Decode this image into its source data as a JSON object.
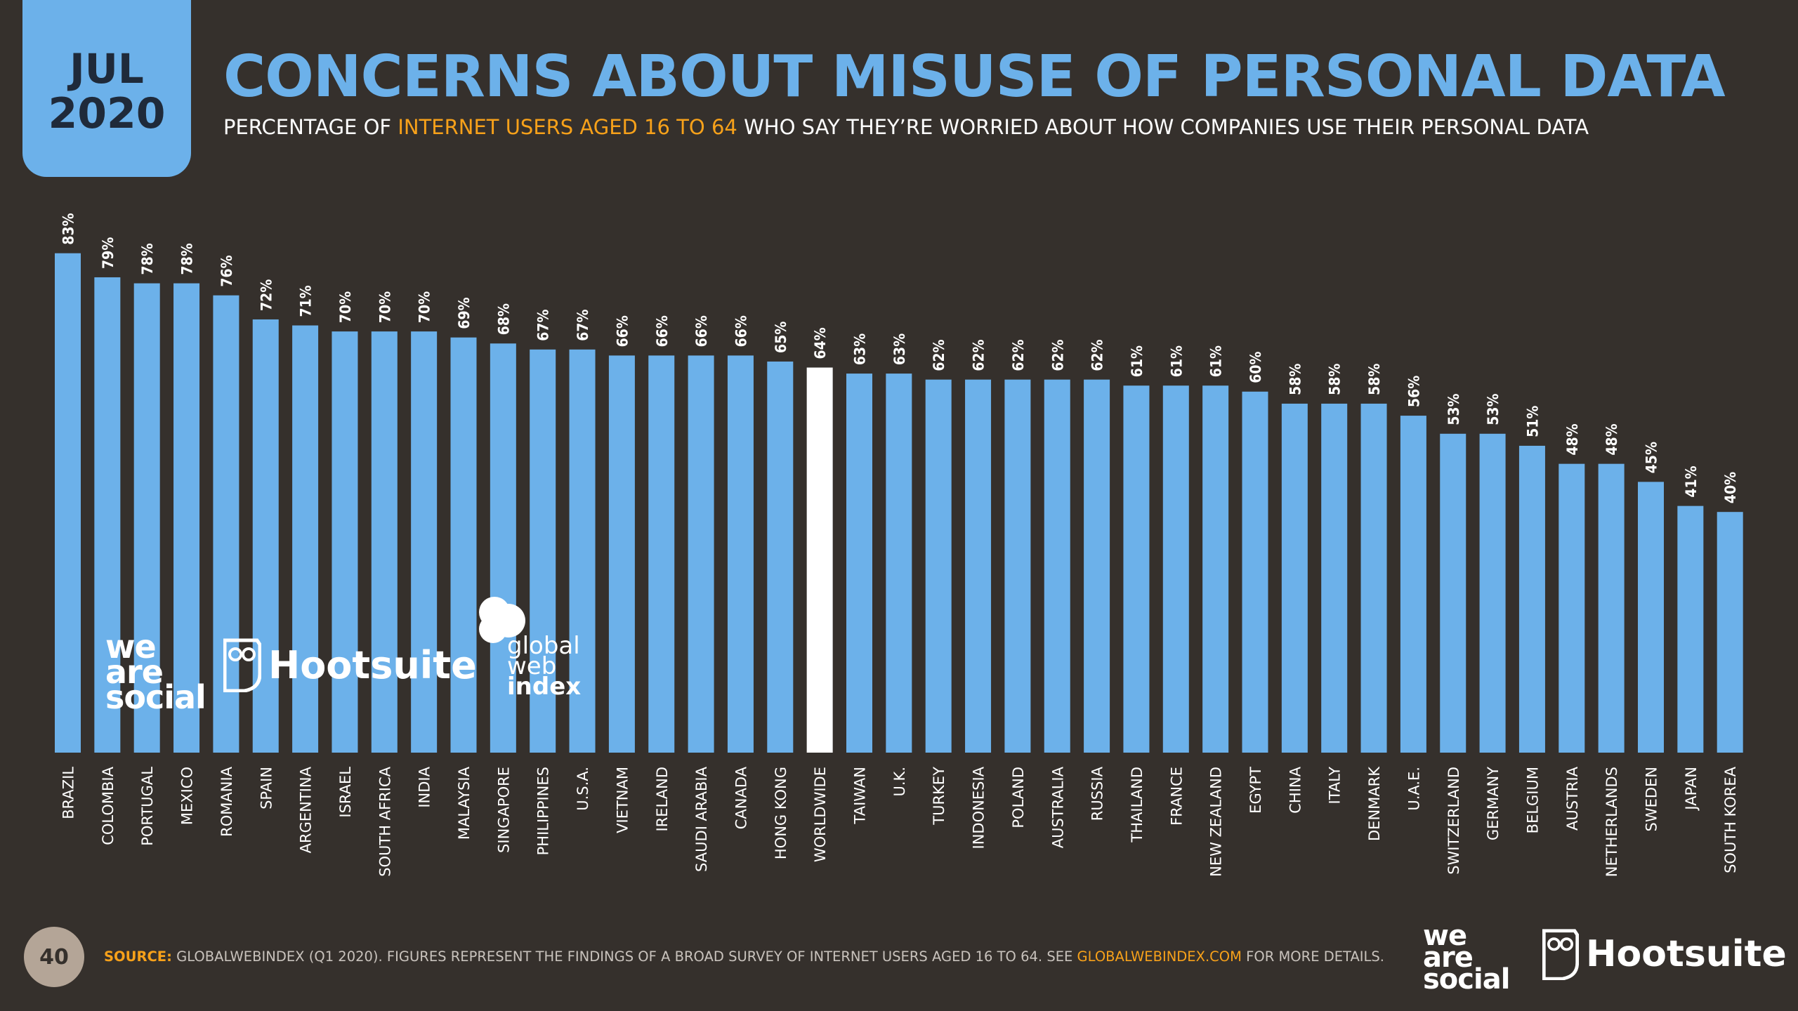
{
  "badge": {
    "month": "JUL",
    "year": "2020"
  },
  "header": {
    "title": "CONCERNS ABOUT MISUSE OF PERSONAL DATA",
    "subtitle_pre": "PERCENTAGE OF ",
    "subtitle_highlight": "INTERNET USERS AGED 16 TO 64",
    "subtitle_post": " WHO SAY THEY’RE WORRIED ABOUT HOW COMPANIES USE THEIR PERSONAL DATA"
  },
  "colors": {
    "bar": "#6cb1ea",
    "highlight_bar": "#ffffff",
    "background": "#35302c",
    "accent": "#f7a11a"
  },
  "chart_data": {
    "type": "bar",
    "title": "CONCERNS ABOUT MISUSE OF PERSONAL DATA",
    "xlabel": "",
    "ylabel": "",
    "ylim": [
      0,
      100
    ],
    "highlight": "WORLDWIDE",
    "categories": [
      "BRAZIL",
      "COLOMBIA",
      "PORTUGAL",
      "MEXICO",
      "ROMANIA",
      "SPAIN",
      "ARGENTINA",
      "ISRAEL",
      "SOUTH AFRICA",
      "INDIA",
      "MALAYSIA",
      "SINGAPORE",
      "PHILIPPINES",
      "U.S.A.",
      "VIETNAM",
      "IRELAND",
      "SAUDI ARABIA",
      "CANADA",
      "HONG KONG",
      "WORLDWIDE",
      "TAIWAN",
      "U.K.",
      "TURKEY",
      "INDONESIA",
      "POLAND",
      "AUSTRALIA",
      "RUSSIA",
      "THAILAND",
      "FRANCE",
      "NEW ZEALAND",
      "EGYPT",
      "CHINA",
      "ITALY",
      "DENMARK",
      "U.A.E.",
      "SWITZERLAND",
      "GERMANY",
      "BELGIUM",
      "AUSTRIA",
      "NETHERLANDS",
      "SWEDEN",
      "JAPAN",
      "SOUTH KOREA"
    ],
    "values": [
      83,
      79,
      78,
      78,
      76,
      72,
      71,
      70,
      70,
      70,
      69,
      68,
      67,
      67,
      66,
      66,
      66,
      66,
      65,
      64,
      63,
      63,
      62,
      62,
      62,
      62,
      62,
      61,
      61,
      61,
      60,
      58,
      58,
      58,
      56,
      53,
      53,
      51,
      48,
      48,
      45,
      41,
      40
    ],
    "value_labels": [
      "83%",
      "79%",
      "78%",
      "78%",
      "76%",
      "72%",
      "71%",
      "70%",
      "70%",
      "70%",
      "69%",
      "68%",
      "67%",
      "67%",
      "66%",
      "66%",
      "66%",
      "66%",
      "65%",
      "64%",
      "63%",
      "63%",
      "62%",
      "62%",
      "62%",
      "62%",
      "62%",
      "61%",
      "61%",
      "61%",
      "60%",
      "58%",
      "58%",
      "58%",
      "56%",
      "53%",
      "53%",
      "51%",
      "48%",
      "48%",
      "45%",
      "41%",
      "40%"
    ]
  },
  "watermarks": {
    "was_line1": "we",
    "was_line2": "are",
    "was_line3": "social",
    "hootsuite": "Hootsuite",
    "gwi_line1": "global",
    "gwi_line2": "web",
    "gwi_line3": "index"
  },
  "footer": {
    "page_number": "40",
    "source_label": "SOURCE:",
    "source_text": " GLOBALWEBINDEX (Q1 2020). FIGURES REPRESENT THE FINDINGS OF A BROAD SURVEY OF INTERNET USERS AGED 16 TO 64. SEE ",
    "source_link": "GLOBALWEBINDEX.COM",
    "source_tail": " FOR MORE DETAILS."
  },
  "brand": {
    "was_line1": "we",
    "was_line2": "are",
    "was_line3": "social",
    "hootsuite": "Hootsuite"
  }
}
